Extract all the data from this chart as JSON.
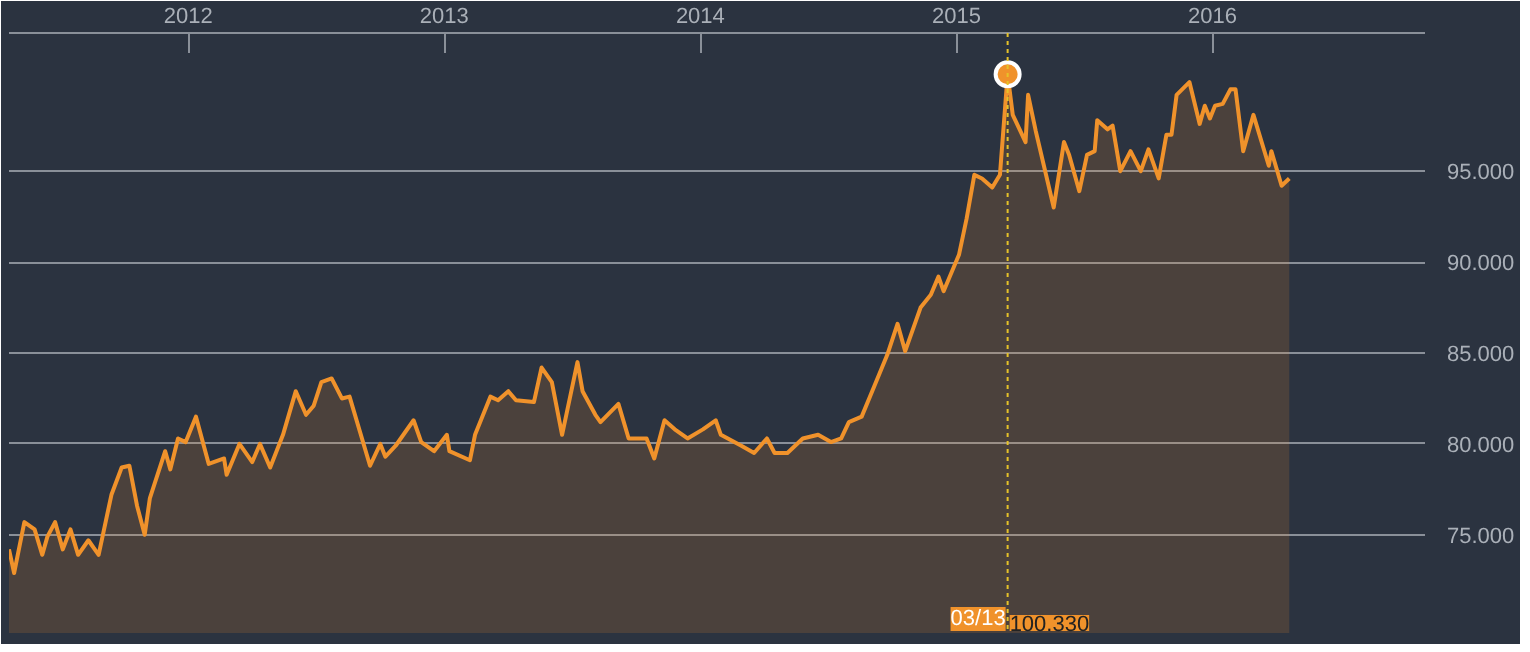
{
  "chart_data": {
    "type": "area",
    "x": [
      2011.3,
      2011.32,
      2011.36,
      2011.4,
      2011.43,
      2011.45,
      2011.48,
      2011.51,
      2011.54,
      2011.57,
      2011.61,
      2011.65,
      2011.7,
      2011.74,
      2011.77,
      2011.8,
      2011.83,
      2011.85,
      2011.91,
      2011.93,
      2011.96,
      2011.99,
      2012.03,
      2012.08,
      2012.14,
      2012.15,
      2012.2,
      2012.25,
      2012.28,
      2012.32,
      2012.37,
      2012.42,
      2012.46,
      2012.49,
      2012.52,
      2012.56,
      2012.6,
      2012.63,
      2012.71,
      2012.75,
      2012.77,
      2012.81,
      2012.88,
      2012.91,
      2012.96,
      2013.01,
      2013.02,
      2013.1,
      2013.12,
      2013.18,
      2013.21,
      2013.25,
      2013.28,
      2013.35,
      2013.38,
      2013.42,
      2013.46,
      2013.52,
      2013.54,
      2013.59,
      2013.61,
      2013.68,
      2013.72,
      2013.79,
      2013.82,
      2013.86,
      2013.9,
      2013.95,
      2014.01,
      2014.06,
      2014.08,
      2014.16,
      2014.21,
      2014.26,
      2014.29,
      2014.34,
      2014.4,
      2014.46,
      2014.51,
      2014.55,
      2014.58,
      2014.63,
      2014.68,
      2014.73,
      2014.77,
      2014.8,
      2014.86,
      2014.9,
      2014.93,
      2014.95,
      2015.01,
      2015.04,
      2015.07,
      2015.1,
      2015.14,
      2015.17,
      2015.2,
      2015.22,
      2015.27,
      2015.28,
      2015.31,
      2015.38,
      2015.42,
      2015.44,
      2015.48,
      2015.51,
      2015.54,
      2015.55,
      2015.59,
      2015.61,
      2015.64,
      2015.68,
      2015.72,
      2015.75,
      2015.79,
      2015.82,
      2015.84,
      2015.86,
      2015.91,
      2015.95,
      2015.97,
      2015.99,
      2016.01,
      2016.04,
      2016.07,
      2016.09,
      2016.12,
      2016.16,
      2016.22,
      2016.23,
      2016.27,
      2016.3
    ],
    "series": [
      {
        "color": "#f0922b",
        "values": [
          74.2,
          72.9,
          75.7,
          75.3,
          73.9,
          74.9,
          75.7,
          74.2,
          75.3,
          73.9,
          74.7,
          73.9,
          77.2,
          78.7,
          78.8,
          76.6,
          75.0,
          77.0,
          79.6,
          78.6,
          80.3,
          80.1,
          81.5,
          78.9,
          79.2,
          78.3,
          80.0,
          79.0,
          80.0,
          78.7,
          80.5,
          82.9,
          81.6,
          82.1,
          83.4,
          83.6,
          82.5,
          82.6,
          78.8,
          80.0,
          79.3,
          79.9,
          81.3,
          80.1,
          79.6,
          80.5,
          79.6,
          79.1,
          80.5,
          82.6,
          82.4,
          82.9,
          82.4,
          82.3,
          84.2,
          83.4,
          80.5,
          84.5,
          82.9,
          81.6,
          81.2,
          82.2,
          80.3,
          80.3,
          79.2,
          81.3,
          80.8,
          80.3,
          80.8,
          81.3,
          80.5,
          79.9,
          79.5,
          80.3,
          79.5,
          79.5,
          80.3,
          80.5,
          80.1,
          80.3,
          81.2,
          81.5,
          83.2,
          84.9,
          86.6,
          85.1,
          87.5,
          88.2,
          89.2,
          88.4,
          90.4,
          92.4,
          94.8,
          94.6,
          94.1,
          94.8,
          100.33,
          98.1,
          96.6,
          99.2,
          97.2,
          93.0,
          96.6,
          95.9,
          93.9,
          95.9,
          96.1,
          97.8,
          97.3,
          97.5,
          95.0,
          96.1,
          95.0,
          96.2,
          94.6,
          97.0,
          97.0,
          99.2,
          99.9,
          97.6,
          98.6,
          97.9,
          98.6,
          98.7,
          99.5,
          99.5,
          96.1,
          98.1,
          95.3,
          96.1,
          94.2,
          94.6
        ]
      }
    ],
    "xlim": [
      2011.3,
      2016.83
    ],
    "ylim": [
      69.6,
      102.6
    ],
    "xticks": [
      2012,
      2013,
      2014,
      2015,
      2016
    ],
    "yticks": [
      {
        "value": 75,
        "label": "75.000"
      },
      {
        "value": 80,
        "label": "80.000"
      },
      {
        "value": 85,
        "label": "85.000"
      },
      {
        "value": 90,
        "label": "90.000"
      },
      {
        "value": 95,
        "label": "95.000"
      }
    ],
    "grid": "y",
    "ref_lines": [
      {
        "axis": "x",
        "value": 2015.2,
        "label": null,
        "color": "#e6c229",
        "line_style": "dotted"
      }
    ],
    "annotations": [
      "03/13",
      "100.330"
    ]
  }
}
